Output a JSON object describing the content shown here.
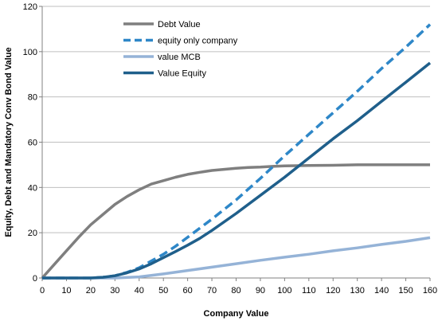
{
  "chart_data": {
    "type": "line",
    "title": "",
    "xlabel": "Company Value",
    "ylabel": "Equity, Debt and Mandatory Conv Bond Value",
    "xlim": [
      0,
      160
    ],
    "ylim": [
      0,
      120
    ],
    "xticks": [
      0,
      10,
      20,
      30,
      40,
      50,
      60,
      70,
      80,
      90,
      100,
      110,
      120,
      130,
      140,
      150,
      160
    ],
    "yticks": [
      0,
      20,
      40,
      60,
      80,
      100,
      120
    ],
    "grid": "horizontal",
    "legend_position": "top-left",
    "series": [
      {
        "name": "Debt Value",
        "color": "#7f7f7f",
        "dash": "solid",
        "x": [
          0,
          5,
          10,
          15,
          20,
          25,
          30,
          35,
          40,
          45,
          50,
          55,
          60,
          65,
          70,
          75,
          80,
          85,
          90,
          95,
          100,
          110,
          120,
          130,
          140,
          150,
          160
        ],
        "y": [
          0,
          6,
          12,
          18,
          23.5,
          28,
          32.5,
          36,
          39,
          41.5,
          43,
          44.5,
          45.8,
          46.7,
          47.5,
          48,
          48.5,
          48.8,
          49,
          49.3,
          49.5,
          49.7,
          49.8,
          50,
          50,
          50,
          50
        ]
      },
      {
        "name": "equity only company",
        "color": "#2e87c8",
        "dash": "dashed",
        "x": [
          0,
          20,
          25,
          30,
          35,
          40,
          45,
          50,
          55,
          60,
          65,
          70,
          80,
          90,
          100,
          110,
          120,
          130,
          140,
          150,
          160
        ],
        "y": [
          0,
          0,
          0.3,
          1,
          2.5,
          4.5,
          7.5,
          10.5,
          14,
          18,
          22,
          26,
          34.5,
          44,
          54,
          63.5,
          73,
          82.5,
          92.5,
          102,
          112
        ]
      },
      {
        "name": "value MCB",
        "color": "#95b3d7",
        "dash": "solid",
        "x": [
          0,
          30,
          40,
          50,
          60,
          70,
          80,
          90,
          100,
          110,
          120,
          130,
          140,
          150,
          160
        ],
        "y": [
          0,
          0,
          0.5,
          1.8,
          3.3,
          4.8,
          6.3,
          7.8,
          9.2,
          10.5,
          12,
          13.3,
          14.8,
          16.2,
          17.8
        ]
      },
      {
        "name": "Value Equity",
        "color": "#1f5f8b",
        "dash": "solid",
        "x": [
          0,
          20,
          25,
          30,
          35,
          40,
          45,
          50,
          55,
          60,
          65,
          70,
          80,
          90,
          100,
          110,
          120,
          130,
          140,
          150,
          160
        ],
        "y": [
          0,
          0,
          0.3,
          1,
          2.3,
          4,
          6.3,
          9,
          11.7,
          14.5,
          17.5,
          21,
          28.5,
          36.5,
          44.5,
          53,
          61.5,
          69.5,
          78,
          86.5,
          95
        ]
      }
    ]
  }
}
